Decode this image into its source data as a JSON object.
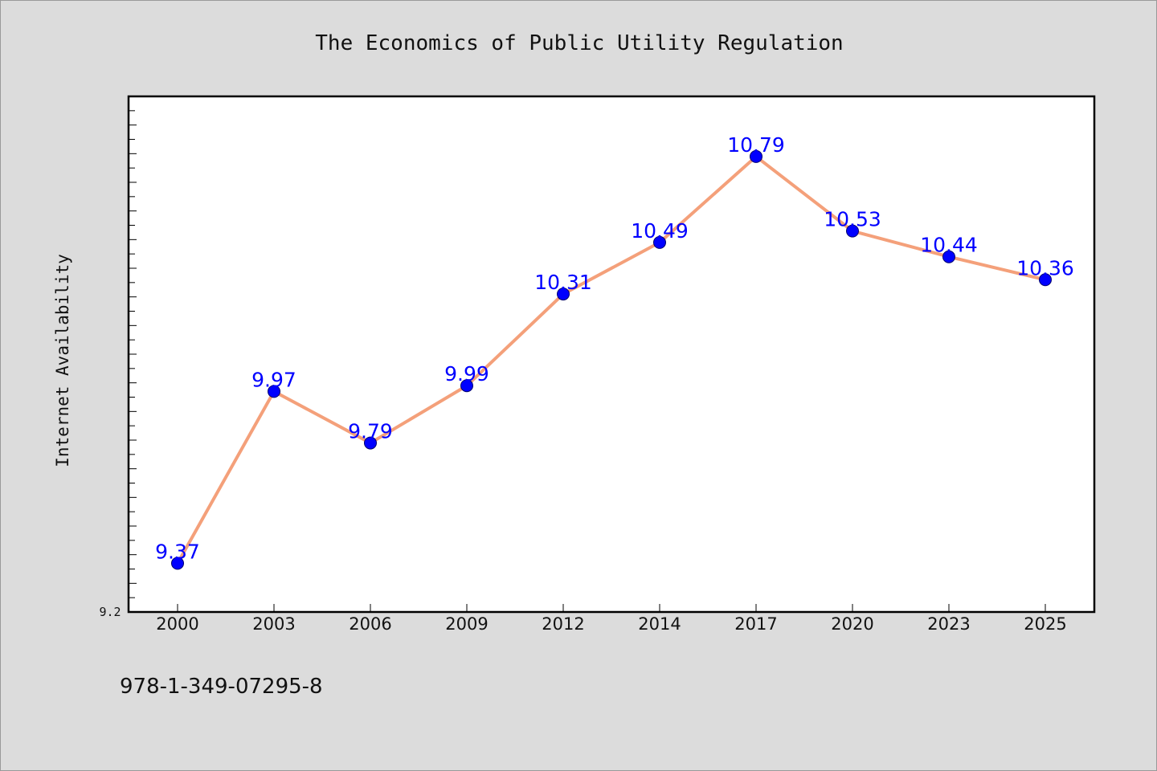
{
  "chart_data": {
    "type": "line",
    "title": "The Economics of Public Utility Regulation",
    "xlabel": "",
    "ylabel": "Internet Availability",
    "categories": [
      "2000",
      "2003",
      "2006",
      "2009",
      "2012",
      "2014",
      "2017",
      "2020",
      "2023",
      "2025"
    ],
    "series": [
      {
        "values": [
          9.37,
          9.97,
          9.79,
          9.99,
          10.31,
          10.49,
          10.79,
          10.53,
          10.44,
          10.36
        ],
        "labels": [
          "9.37",
          "9.97",
          "9.79",
          "9.99",
          "10.31",
          "10.49",
          "10.79",
          "10.53",
          "10.44",
          "10.36"
        ],
        "line_color": "#f4a07a",
        "marker_color": "#0000ff"
      }
    ],
    "ylim": [
      9.2,
      11.0
    ],
    "y_tick_labels": [
      "9.2"
    ],
    "grid": false,
    "legend": "none"
  },
  "footer": {
    "isbn": "978-1-349-07295-8"
  },
  "colors": {
    "background": "#dcdcdc",
    "plot_background": "#ffffff",
    "axis": "#000000",
    "text": "#111111",
    "label": "#0000ff"
  }
}
